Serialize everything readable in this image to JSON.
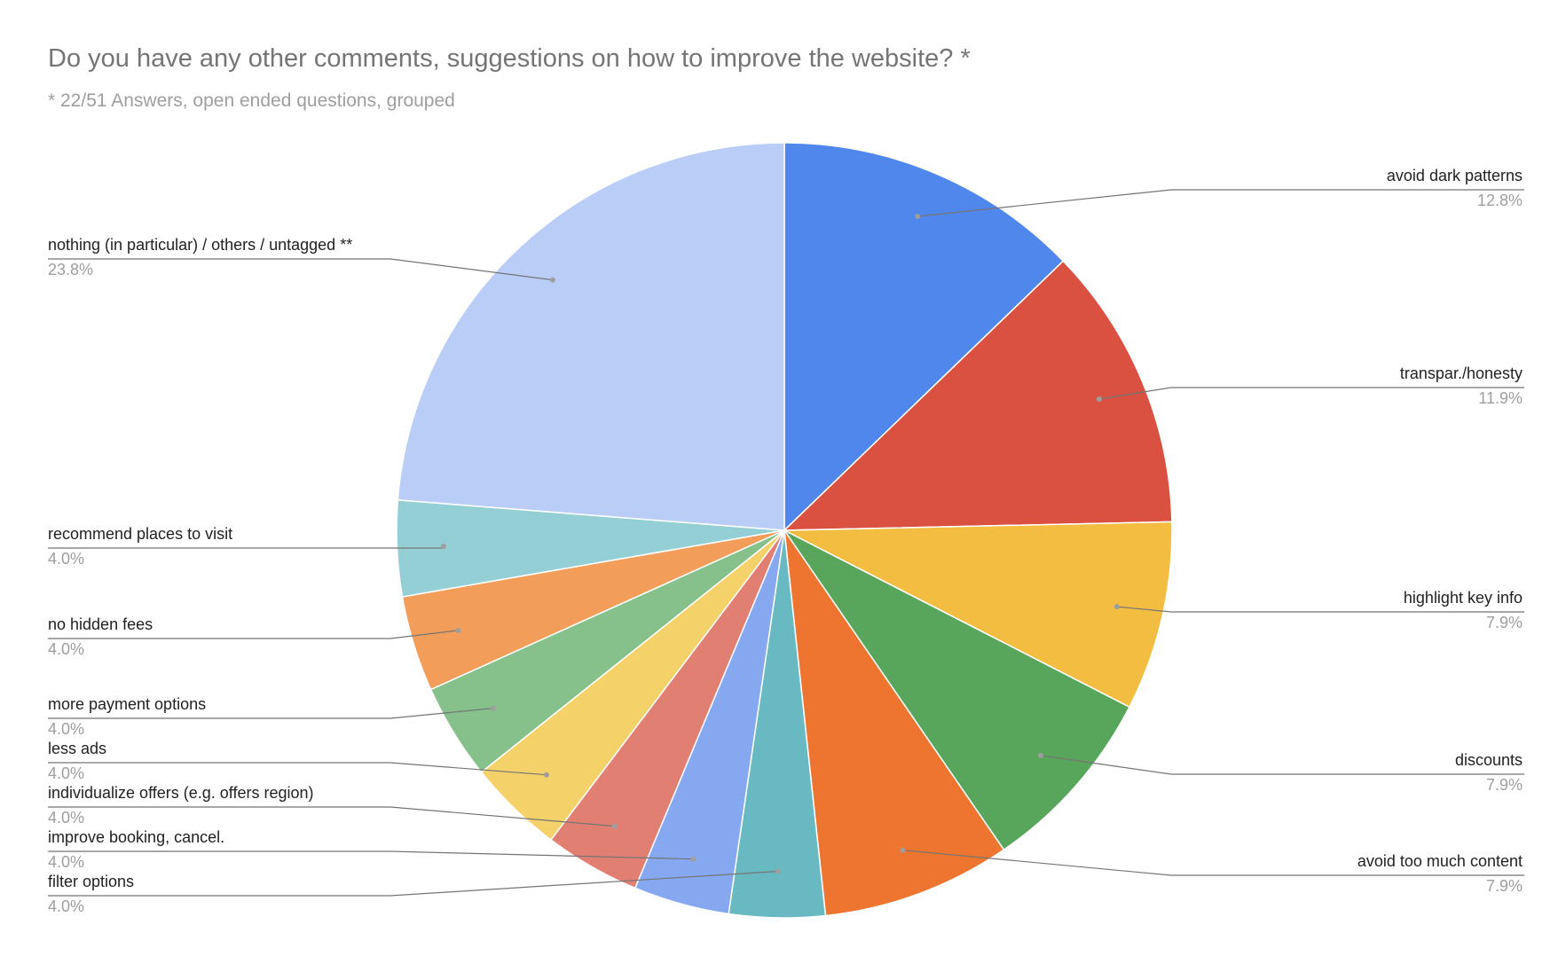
{
  "chart_data": {
    "type": "pie",
    "title": "Do you have any other comments, suggestions on how to improve the website? *",
    "subtitle": "* 22/51 Answers, open ended questions, grouped",
    "slices": [
      {
        "label": "avoid dark patterns",
        "value": 12.8,
        "pct_label": "12.8%",
        "color": "#5087ec"
      },
      {
        "label": "transpar./honesty",
        "value": 11.9,
        "pct_label": "11.9%",
        "color": "#da5141"
      },
      {
        "label": "highlight key info",
        "value": 7.9,
        "pct_label": "7.9%",
        "color": "#f3bd42"
      },
      {
        "label": "discounts",
        "value": 7.9,
        "pct_label": "7.9%",
        "color": "#58a55c"
      },
      {
        "label": "avoid too much content",
        "value": 7.9,
        "pct_label": "7.9%",
        "color": "#ed752f"
      },
      {
        "label": "filter options",
        "value": 4.0,
        "pct_label": "4.0%",
        "color": "#68b9c2"
      },
      {
        "label": "improve booking, cancel.",
        "value": 4.0,
        "pct_label": "4.0%",
        "color": "#85a8f0"
      },
      {
        "label": "individualize offers (e.g. offers region)",
        "value": 4.0,
        "pct_label": "4.0%",
        "color": "#e27f73"
      },
      {
        "label": "less ads",
        "value": 4.0,
        "pct_label": "4.0%",
        "color": "#f5d169"
      },
      {
        "label": "more payment options",
        "value": 4.0,
        "pct_label": "4.0%",
        "color": "#86c08a"
      },
      {
        "label": "no hidden fees",
        "value": 4.0,
        "pct_label": "4.0%",
        "color": "#f29e5a"
      },
      {
        "label": "recommend places to visit",
        "value": 4.0,
        "pct_label": "4.0%",
        "color": "#94cfd5"
      },
      {
        "label": "nothing (in particular) / others / untagged **",
        "value": 23.8,
        "pct_label": "23.8%",
        "color": "#bacdf7"
      }
    ]
  }
}
